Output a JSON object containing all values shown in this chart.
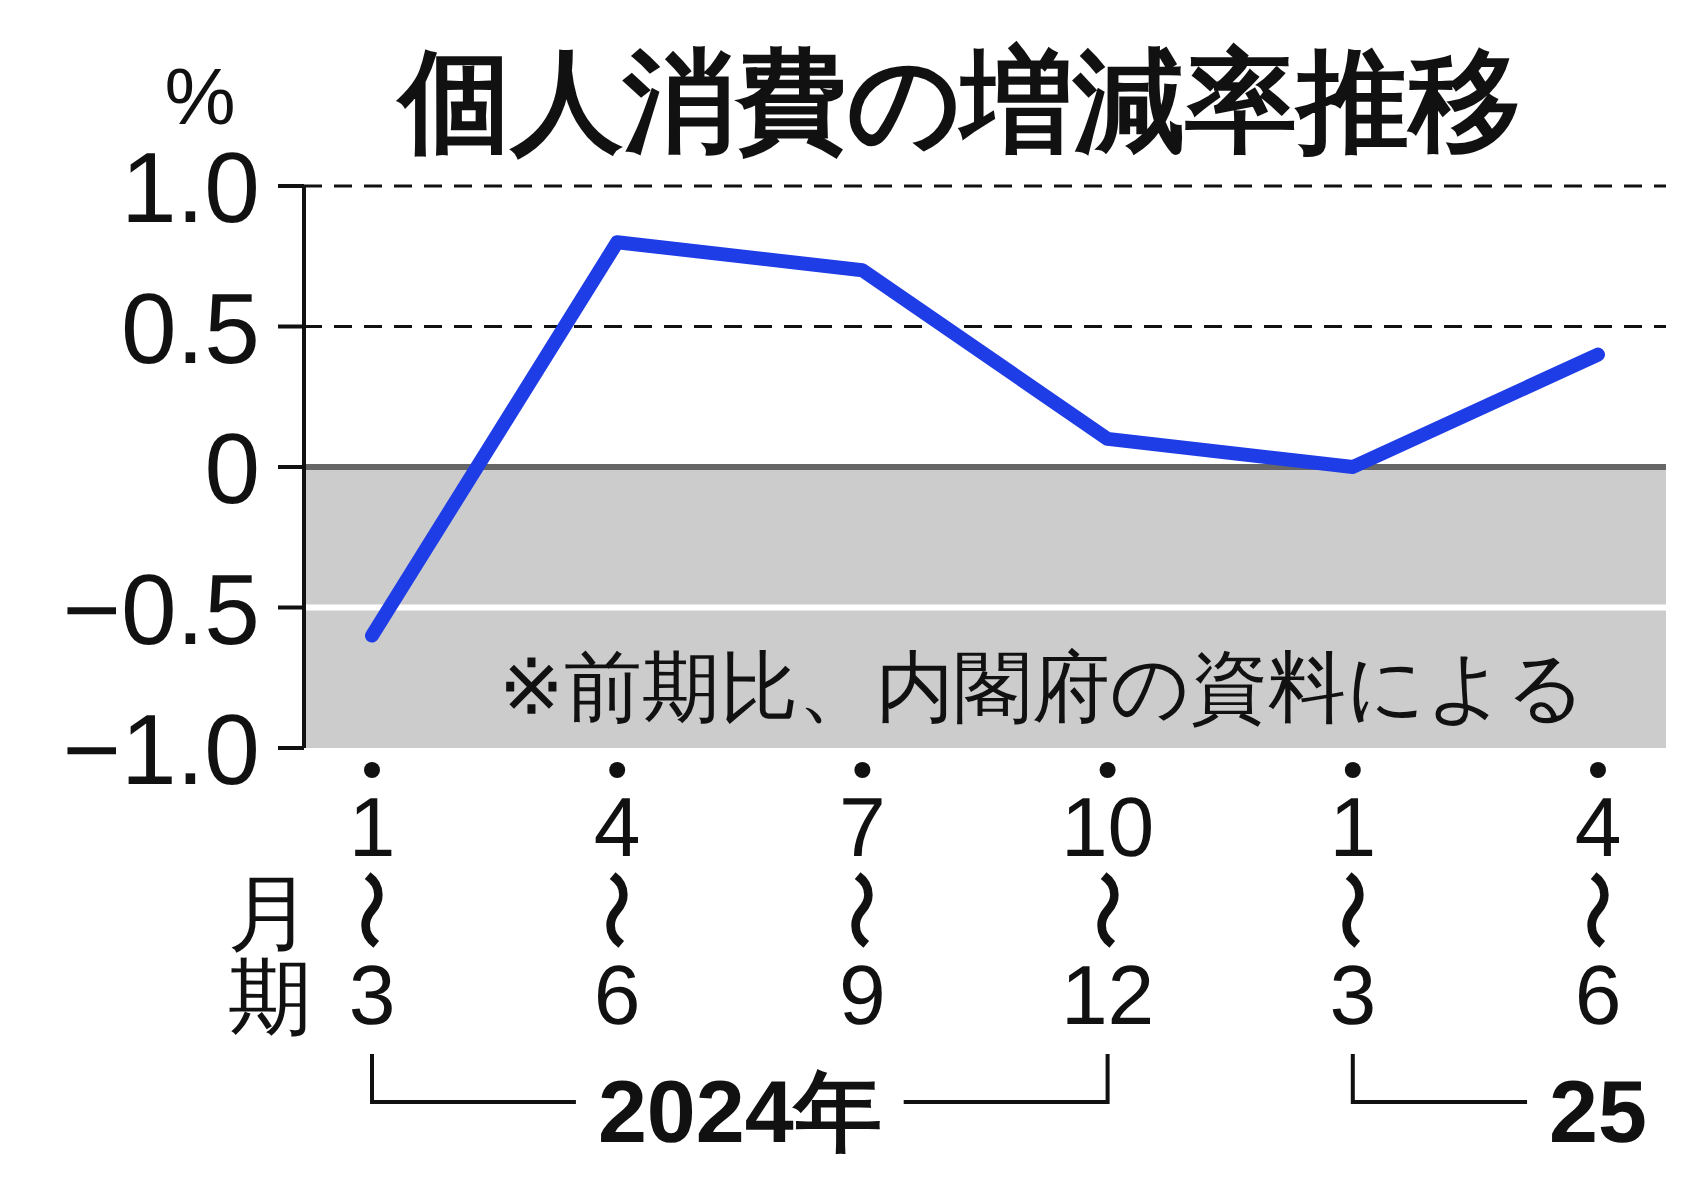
{
  "chart_data": {
    "type": "line",
    "title": "個人消費の増減率推移",
    "ylabel": "%",
    "xlabel": "月期",
    "categories": [
      "1〜3",
      "4〜6",
      "7〜9",
      "10〜12",
      "1〜3",
      "4〜6"
    ],
    "series": [
      {
        "color": "#1f3de6",
        "values": [
          -0.6,
          0.8,
          0.7,
          0.1,
          0,
          0.4
        ]
      }
    ],
    "ylim": [
      -1,
      1
    ],
    "yticks": [
      {
        "value": -1,
        "label": "−1.0"
      },
      {
        "value": -0.5,
        "label": "−0.5"
      },
      0,
      0.5,
      {
        "value": 1,
        "label": "1.0"
      }
    ],
    "line_style": "solid",
    "bands": [
      {
        "axis": "y",
        "from": -1,
        "to": 0,
        "color": "#cccccc"
      }
    ],
    "ref_lines": [
      {
        "axis": "y",
        "value": 1,
        "color": "#111111",
        "line_style": "dashed"
      },
      {
        "axis": "y",
        "value": 0.5,
        "color": "#111111",
        "line_style": "dashed"
      },
      {
        "axis": "y",
        "value": 0,
        "color": "#666666"
      },
      {
        "axis": "y",
        "value": -0.5,
        "color": "#ffffff"
      }
    ],
    "annotations": [
      "※前期比、内閣府の資料による",
      "2024年",
      "25"
    ]
  }
}
